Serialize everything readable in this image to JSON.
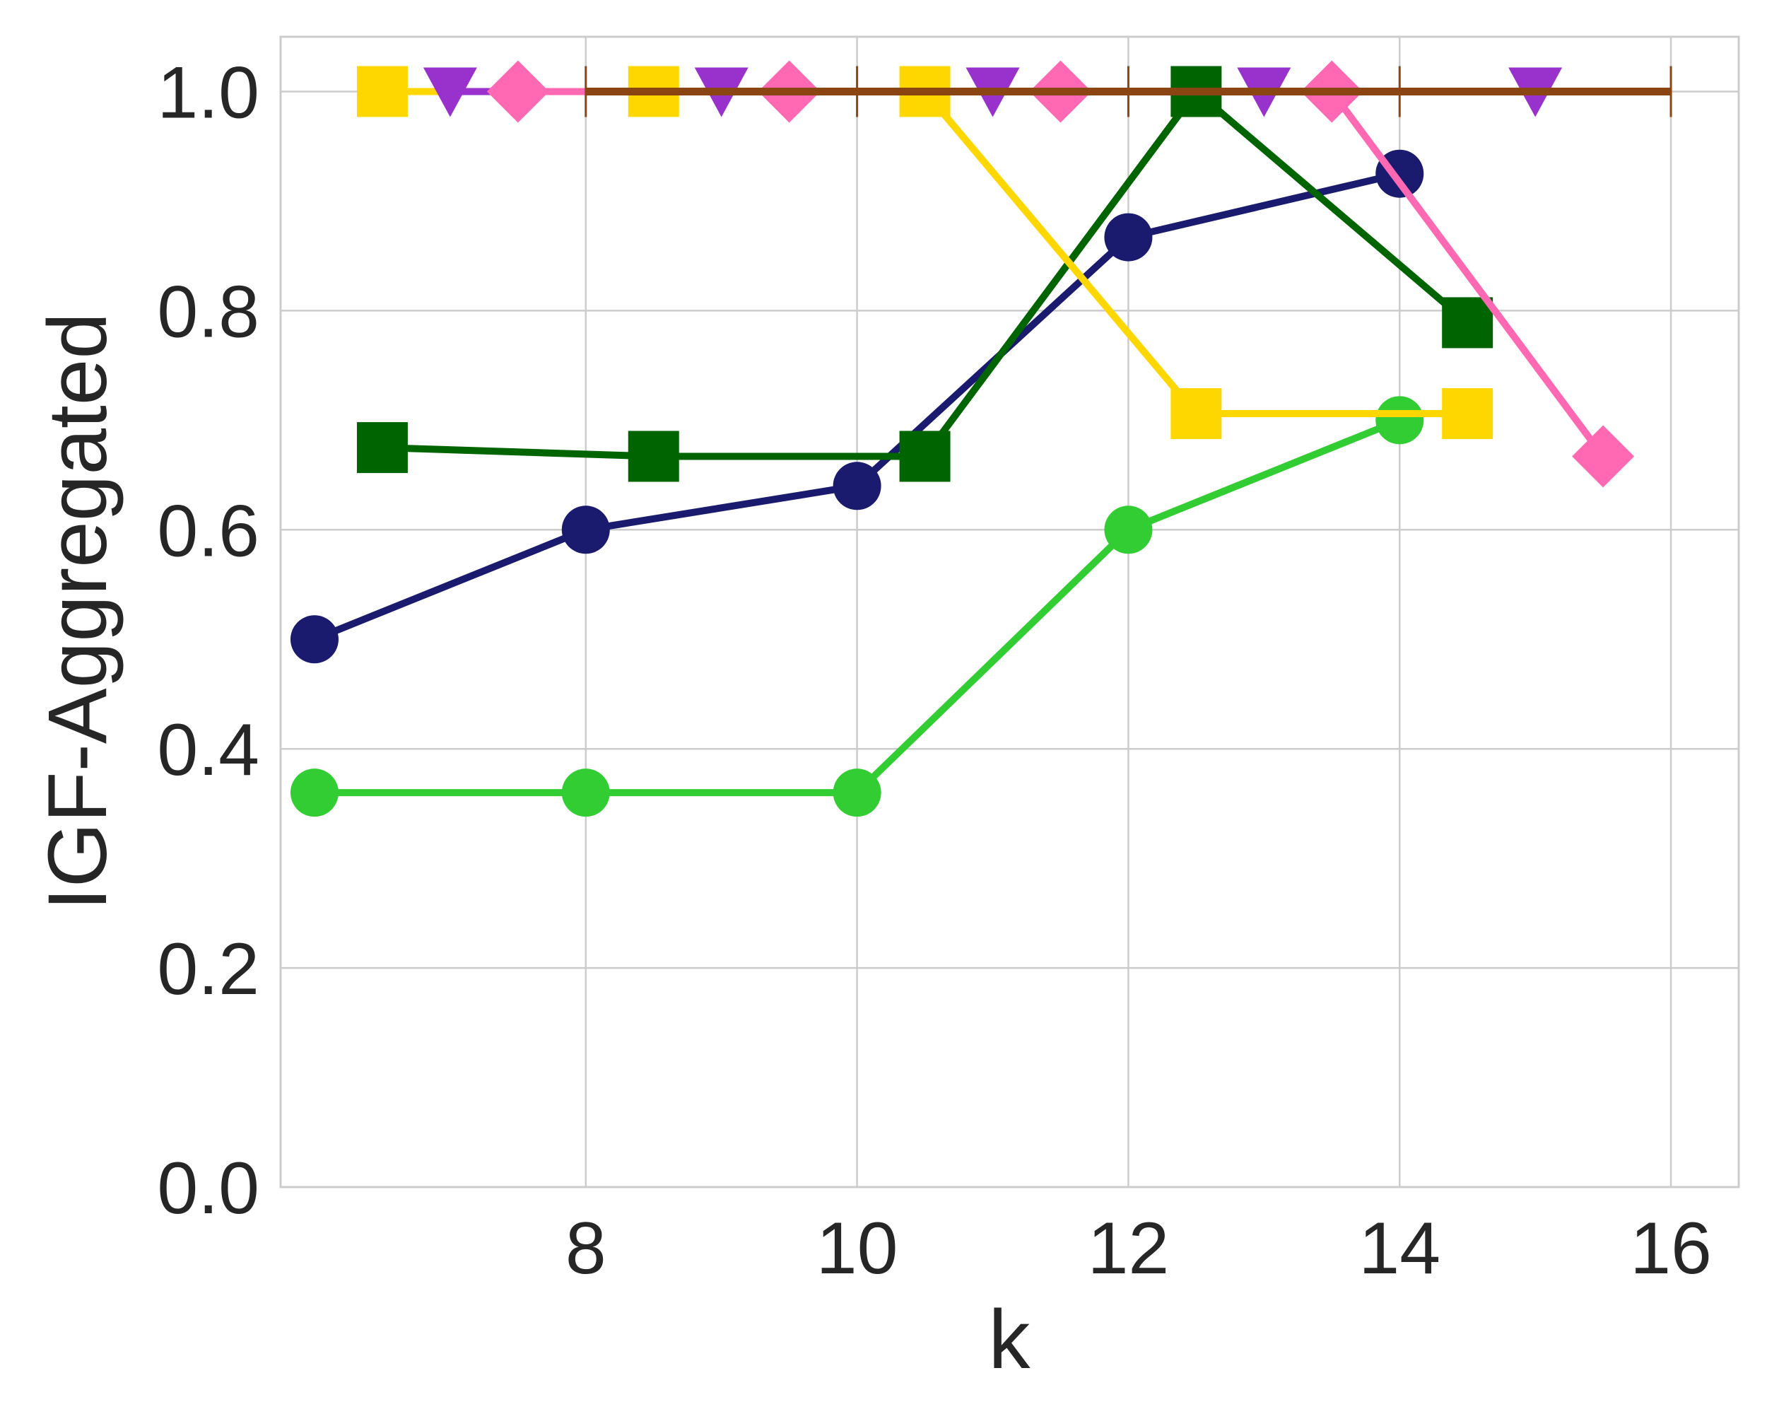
{
  "chart_data": {
    "type": "line",
    "title": "",
    "xlabel": "k",
    "ylabel": "IGF-Aggregated",
    "xlim": [
      5.75,
      16.5
    ],
    "ylim": [
      0.0,
      1.05
    ],
    "xticks": [
      8,
      10,
      12,
      14,
      16
    ],
    "yticks": [
      0.0,
      0.2,
      0.4,
      0.6,
      0.8,
      1.0
    ],
    "xtick_labels": [
      "8",
      "10",
      "12",
      "14",
      "16"
    ],
    "ytick_labels": [
      "0.0",
      "0.2",
      "0.4",
      "0.6",
      "0.8",
      "1.0"
    ],
    "grid": true,
    "legend": "none",
    "series": [
      {
        "color": "#1a1a6e",
        "marker": "circle",
        "x": [
          6,
          8,
          10,
          12,
          14
        ],
        "y": [
          0.5,
          0.6,
          0.64,
          0.867,
          0.925
        ]
      },
      {
        "color": "#32cd32",
        "marker": "circle",
        "x": [
          6,
          8,
          10,
          12,
          14
        ],
        "y": [
          0.36,
          0.36,
          0.36,
          0.6,
          0.7
        ]
      },
      {
        "color": "#006400",
        "marker": "square",
        "x": [
          6.5,
          8.5,
          10.5,
          12.5,
          14.5
        ],
        "y": [
          0.675,
          0.667,
          0.667,
          1.0,
          0.789
        ]
      },
      {
        "color": "#ffd700",
        "marker": "square",
        "x": [
          6.5,
          8.5,
          10.5,
          12.5,
          14.5
        ],
        "y": [
          1.0,
          1.0,
          1.0,
          0.706,
          0.706
        ]
      },
      {
        "color": "#9932cc",
        "marker": "triangle-down",
        "x": [
          7,
          9,
          11,
          13,
          15
        ],
        "y": [
          1.0,
          1.0,
          1.0,
          1.0,
          1.0
        ]
      },
      {
        "color": "#ff69b4",
        "marker": "diamond",
        "x": [
          7.5,
          9.5,
          11.5,
          13.5,
          15.5
        ],
        "y": [
          1.0,
          1.0,
          1.0,
          1.0,
          0.667
        ]
      },
      {
        "color": "#8b4513",
        "marker": "vline",
        "x": [
          8,
          10,
          12,
          14,
          16
        ],
        "y": [
          1.0,
          1.0,
          1.0,
          1.0,
          1.0
        ]
      }
    ]
  }
}
